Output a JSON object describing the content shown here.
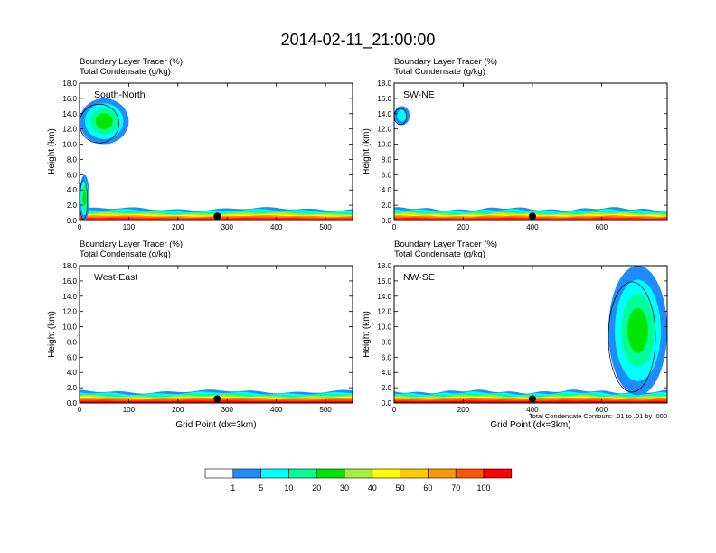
{
  "figure": {
    "title": "2014-02-11_21:00:00",
    "contour_note": "Total Condensate Contours: .01 to .01 by .000",
    "xlabel": "Grid Point (dx=3km)",
    "ylabel": "Height (km)"
  },
  "chart_data": [
    {
      "type": "heatmap",
      "panel": "South-North",
      "title_lines": [
        "Boundary Layer Tracer   (%)",
        "Total Condensate   (g/kg)"
      ],
      "ylabel": "Height (km)",
      "xlabel": "",
      "xlim": [
        0,
        555
      ],
      "ylim": [
        0,
        18
      ],
      "xticks": [
        0,
        100,
        200,
        300,
        400,
        500
      ],
      "yticks": [
        "0.0",
        "2.0",
        "4.0",
        "6.0",
        "8.0",
        "10.0",
        "12.0",
        "14.0",
        "16.0",
        "18.0"
      ],
      "marker_x": 280,
      "boundary_layer_top_km": 1.5,
      "tracer_features": [
        {
          "x": [
            0,
            100
          ],
          "y": [
            10,
            16
          ],
          "max_pct": 30
        },
        {
          "x": [
            0,
            20
          ],
          "y": [
            0,
            6
          ],
          "max_pct": 40
        }
      ]
    },
    {
      "type": "heatmap",
      "panel": "SW-NE",
      "title_lines": [
        "Boundary Layer Tracer   (%)",
        "Total Condensate   (g/kg)"
      ],
      "ylabel": "Height (km)",
      "xlabel": "",
      "xlim": [
        0,
        790
      ],
      "ylim": [
        0,
        18
      ],
      "xticks": [
        0,
        200,
        400,
        600
      ],
      "yticks": [
        "0.0",
        "2.0",
        "4.0",
        "6.0",
        "8.0",
        "10.0",
        "12.0",
        "14.0",
        "16.0",
        "18.0"
      ],
      "marker_x": 400,
      "boundary_layer_top_km": 1.5,
      "tracer_features": [
        {
          "x": [
            0,
            45
          ],
          "y": [
            12.5,
            15
          ],
          "max_pct": 5
        }
      ]
    },
    {
      "type": "heatmap",
      "panel": "West-East",
      "title_lines": [
        "Boundary Layer Tracer   (%)",
        "Total Condensate   (g/kg)"
      ],
      "ylabel": "Height (km)",
      "xlabel": "Grid Point (dx=3km)",
      "xlim": [
        0,
        555
      ],
      "ylim": [
        0,
        18
      ],
      "xticks": [
        0,
        100,
        200,
        300,
        400,
        500
      ],
      "yticks": [
        "0.0",
        "2.0",
        "4.0",
        "6.0",
        "8.0",
        "10.0",
        "12.0",
        "14.0",
        "16.0",
        "18.0"
      ],
      "marker_x": 280,
      "boundary_layer_top_km": 1.5,
      "tracer_features": []
    },
    {
      "type": "heatmap",
      "panel": "NW-SE",
      "title_lines": [
        "Boundary Layer Tracer   (%)",
        "Total Condensate   (g/kg)"
      ],
      "ylabel": "Height (km)",
      "xlabel": "Grid Point (dx=3km)",
      "xlim": [
        0,
        790
      ],
      "ylim": [
        0,
        18
      ],
      "xticks": [
        0,
        200,
        400,
        600
      ],
      "yticks": [
        "0.0",
        "2.0",
        "4.0",
        "6.0",
        "8.0",
        "10.0",
        "12.0",
        "14.0",
        "16.0",
        "18.0"
      ],
      "marker_x": 400,
      "boundary_layer_top_km": 1.5,
      "tracer_features": [
        {
          "x": [
            620,
            790
          ],
          "y": [
            1,
            18
          ],
          "max_pct": 30
        }
      ]
    }
  ],
  "colorbar": {
    "labels": [
      "1",
      "5",
      "10",
      "20",
      "30",
      "40",
      "50",
      "60",
      "70",
      "100"
    ],
    "colors": [
      "#ffffff",
      "#1e8cff",
      "#00ffff",
      "#00ff99",
      "#00e600",
      "#a0f040",
      "#ffff00",
      "#ffcc00",
      "#ff9900",
      "#ff5500",
      "#ff0000"
    ]
  }
}
